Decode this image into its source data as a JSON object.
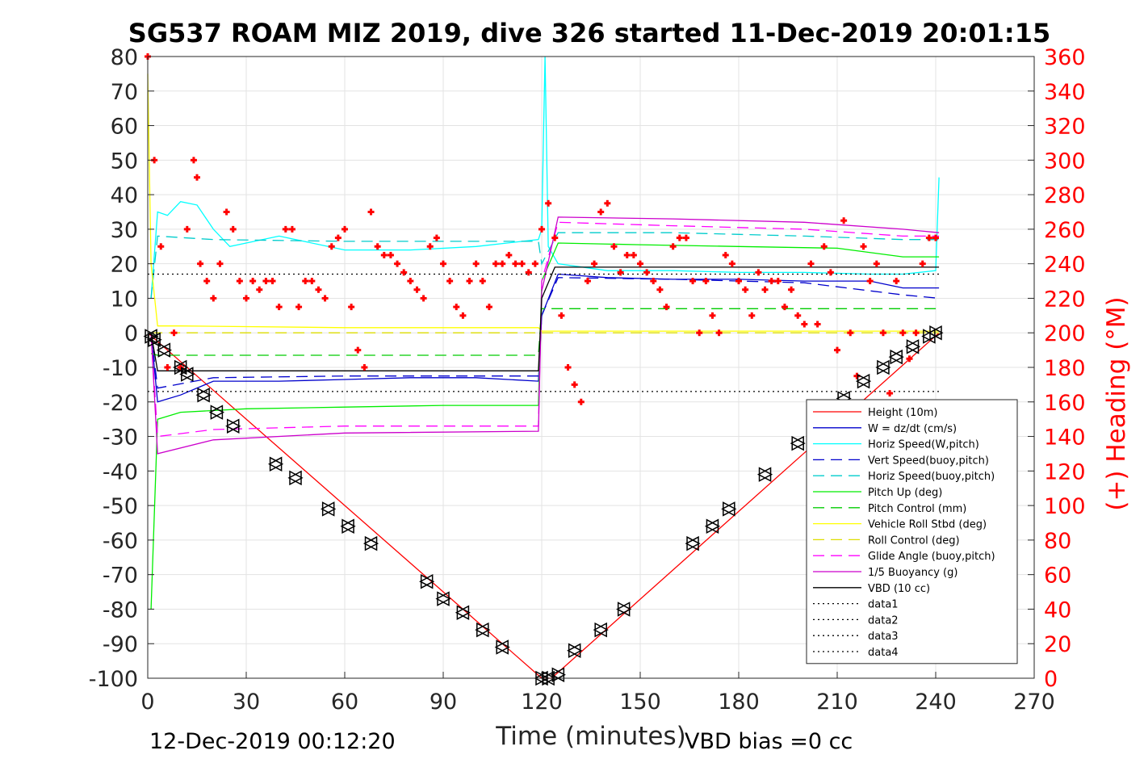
{
  "chart_data": {
    "type": "line",
    "title": "SG537 ROAM MIZ 2019, dive 326 started 11-Dec-2019 20:01:15",
    "xlabel": "Time (minutes)",
    "ylabel": "",
    "ylabel_right": "(+) Heading (°M)",
    "xlim": [
      0,
      270
    ],
    "ylim": [
      -100,
      80
    ],
    "ylim_right": [
      0,
      360
    ],
    "x_ticks": [
      0,
      30,
      60,
      90,
      120,
      150,
      180,
      210,
      240,
      270
    ],
    "y_ticks": [
      -100,
      -90,
      -80,
      -70,
      -60,
      -50,
      -40,
      -30,
      -20,
      -10,
      0,
      10,
      20,
      30,
      40,
      50,
      60,
      70,
      80
    ],
    "y_ticks_right": [
      0,
      20,
      40,
      60,
      80,
      100,
      120,
      140,
      160,
      180,
      200,
      220,
      240,
      260,
      280,
      300,
      320,
      340,
      360
    ],
    "grid": true,
    "legend_position": "bottom-right",
    "footer_left": "12-Dec-2019 00:12:20",
    "footer_right": "VBD bias =0 cc",
    "colors": {
      "height": "#ff0000",
      "w": "#0000cc",
      "horiz_speed": "#00ffff",
      "vert_speed": "#0000cc",
      "horiz_speed_buoy": "#00cccc",
      "pitch_up": "#00ee00",
      "pitch_control": "#00cc00",
      "roll": "#ffff00",
      "roll_control": "#dddd00",
      "glide_angle": "#ff00ff",
      "buoyancy": "#cc00cc",
      "vbd": "#000000",
      "heading": "#ff0000"
    },
    "series": [
      {
        "name": "Height (10m)",
        "key": "height",
        "style": "solid",
        "x": [
          0,
          120,
          123,
          241
        ],
        "y": [
          0,
          -100,
          -100,
          0
        ]
      },
      {
        "name": "W = dz/dt (cm/s)",
        "key": "w",
        "style": "solid",
        "x": [
          1,
          3,
          10,
          20,
          40,
          60,
          80,
          100,
          119,
          120,
          125,
          140,
          160,
          180,
          200,
          220,
          230,
          241
        ],
        "y": [
          0,
          -20,
          -18,
          -14,
          -14,
          -13.5,
          -13,
          -13,
          -14,
          5,
          17,
          16,
          15.5,
          15.5,
          15,
          15,
          13,
          13
        ]
      },
      {
        "name": "Horiz Speed(W,pitch)",
        "key": "horiz_speed",
        "style": "solid",
        "x": [
          1,
          3,
          6,
          10,
          15,
          20,
          25,
          30,
          40,
          60,
          80,
          100,
          119,
          120,
          121,
          122,
          125,
          140,
          160,
          180,
          200,
          220,
          230,
          240,
          241
        ],
        "y": [
          10,
          35,
          34,
          38,
          37,
          30,
          25,
          26,
          28,
          24,
          24,
          25,
          27,
          30,
          80,
          25,
          20,
          18,
          18,
          17.5,
          17.5,
          17,
          17,
          18,
          45
        ]
      },
      {
        "name": "Vert Speed(buoy,pitch)",
        "key": "vert_speed",
        "style": "dashed",
        "x": [
          1,
          3,
          20,
          60,
          119,
          120,
          125,
          160,
          200,
          230,
          241
        ],
        "y": [
          0,
          -16,
          -13,
          -12.5,
          -12.5,
          5,
          16,
          15.5,
          14.5,
          11,
          10
        ]
      },
      {
        "name": "Horiz Speed(buoy,pitch)",
        "key": "horiz_speed_buoy",
        "style": "dashed",
        "x": [
          1,
          3,
          20,
          60,
          119,
          120,
          125,
          160,
          200,
          230,
          241
        ],
        "y": [
          10,
          28,
          27,
          26.5,
          26.5,
          20,
          29,
          29,
          28,
          27,
          27
        ]
      },
      {
        "name": "Pitch Up (deg)",
        "key": "pitch_up",
        "style": "solid",
        "x": [
          1,
          3,
          10,
          30,
          60,
          90,
          119,
          120,
          125,
          150,
          180,
          210,
          230,
          241
        ],
        "y": [
          -80,
          -25,
          -23,
          -22,
          -21.5,
          -21,
          -21,
          15,
          26,
          25.5,
          25,
          24.5,
          22,
          22
        ]
      },
      {
        "name": "Pitch Control (mm)",
        "key": "pitch_control",
        "style": "dashed",
        "x": [
          1,
          3,
          119,
          120,
          241
        ],
        "y": [
          -6,
          -6.5,
          -6.5,
          7,
          7
        ]
      },
      {
        "name": "Vehicle Roll Stbd (deg)",
        "key": "roll",
        "style": "solid",
        "x": [
          0,
          1,
          3,
          10,
          60,
          119,
          120,
          125,
          180,
          241
        ],
        "y": [
          75,
          20,
          2,
          2,
          1.5,
          1.5,
          0.5,
          0.5,
          0.5,
          0.5
        ]
      },
      {
        "name": "Roll Control (deg)",
        "key": "roll_control",
        "style": "dashed",
        "x": [
          1,
          3,
          119,
          120,
          241
        ],
        "y": [
          0,
          0,
          0,
          0,
          0
        ]
      },
      {
        "name": "Glide Angle (buoy,pitch)",
        "key": "glide_angle",
        "style": "dashed",
        "x": [
          1,
          3,
          20,
          60,
          119,
          120,
          125,
          160,
          200,
          230,
          241
        ],
        "y": [
          0,
          -30,
          -28,
          -27,
          -27,
          15,
          32,
          31,
          30,
          28,
          28
        ]
      },
      {
        "name": "1/5 Buoyancy (g)",
        "key": "buoyancy",
        "style": "solid",
        "x": [
          1,
          3,
          20,
          60,
          119,
          120,
          125,
          160,
          200,
          230,
          241
        ],
        "y": [
          0,
          -35,
          -31,
          -29,
          -28.5,
          12,
          33.5,
          33,
          32,
          30,
          29
        ]
      },
      {
        "name": "VBD (10 cc)",
        "key": "vbd",
        "style": "solid",
        "x": [
          1,
          3,
          119,
          120,
          124,
          241
        ],
        "y": [
          0,
          -11,
          -11,
          10,
          19,
          19
        ]
      },
      {
        "name": "data1",
        "key": "data1",
        "style": "dotted",
        "x": [],
        "y": []
      },
      {
        "name": "data2",
        "key": "data2",
        "style": "dotted",
        "x": [],
        "y": []
      },
      {
        "name": "data3",
        "key": "data3",
        "style": "dotted",
        "x": [
          0,
          241
        ],
        "y": [
          17,
          17
        ]
      },
      {
        "name": "data4",
        "key": "data4",
        "style": "dotted",
        "x": [
          0,
          241
        ],
        "y": [
          -17,
          -17
        ]
      }
    ],
    "heading": {
      "axis": "right",
      "marker": "+",
      "x": [
        0,
        2,
        4,
        6,
        8,
        10,
        12,
        14,
        15,
        16,
        18,
        20,
        22,
        24,
        26,
        28,
        30,
        32,
        34,
        36,
        38,
        40,
        42,
        44,
        46,
        48,
        50,
        52,
        54,
        56,
        58,
        60,
        62,
        64,
        66,
        68,
        70,
        72,
        74,
        76,
        78,
        80,
        82,
        84,
        86,
        88,
        90,
        92,
        94,
        96,
        98,
        100,
        102,
        104,
        106,
        108,
        110,
        112,
        114,
        116,
        118,
        120,
        122,
        124,
        126,
        128,
        130,
        132,
        134,
        136,
        138,
        140,
        142,
        144,
        146,
        148,
        150,
        152,
        154,
        156,
        158,
        160,
        162,
        164,
        166,
        168,
        170,
        172,
        174,
        176,
        178,
        180,
        182,
        184,
        186,
        188,
        190,
        192,
        194,
        196,
        198,
        200,
        202,
        204,
        206,
        208,
        210,
        212,
        214,
        216,
        218,
        220,
        222,
        224,
        226,
        228,
        230,
        232,
        234,
        236,
        238,
        240
      ],
      "y": [
        360,
        300,
        250,
        180,
        200,
        180,
        260,
        300,
        290,
        240,
        230,
        220,
        240,
        270,
        260,
        230,
        220,
        230,
        225,
        230,
        230,
        215,
        260,
        260,
        215,
        230,
        230,
        225,
        220,
        250,
        255,
        260,
        215,
        190,
        180,
        270,
        250,
        245,
        245,
        240,
        235,
        230,
        225,
        220,
        250,
        255,
        240,
        230,
        215,
        210,
        230,
        240,
        230,
        215,
        240,
        240,
        245,
        240,
        240,
        235,
        240,
        260,
        275,
        255,
        210,
        180,
        170,
        160,
        230,
        240,
        270,
        275,
        250,
        235,
        245,
        245,
        240,
        235,
        230,
        225,
        215,
        250,
        255,
        255,
        230,
        200,
        230,
        210,
        200,
        245,
        240,
        230,
        225,
        210,
        235,
        225,
        230,
        230,
        215,
        225,
        210,
        205,
        240,
        205,
        250,
        235,
        190,
        265,
        200,
        175,
        250,
        230,
        240,
        200,
        165,
        230,
        200,
        185,
        200,
        240,
        255,
        255
      ]
    },
    "markers": {
      "style": "triangles",
      "x": [
        1,
        2,
        5,
        10,
        12,
        17,
        21,
        26,
        39,
        45,
        55,
        61,
        68,
        85,
        90,
        96,
        102,
        108,
        120,
        122,
        125,
        130,
        138,
        145,
        166,
        172,
        177,
        188,
        198,
        212,
        218,
        224,
        228,
        233,
        238,
        240
      ],
      "y": [
        -1,
        -2,
        -5,
        -10,
        -12,
        -18,
        -23,
        -27,
        -38,
        -42,
        -51,
        -56,
        -61,
        -72,
        -77,
        -81,
        -86,
        -91,
        -100,
        -100,
        -99,
        -92,
        -86,
        -80,
        -61,
        -56,
        -51,
        -41,
        -32,
        -19,
        -14,
        -10,
        -7,
        -4,
        -1,
        0
      ]
    }
  }
}
